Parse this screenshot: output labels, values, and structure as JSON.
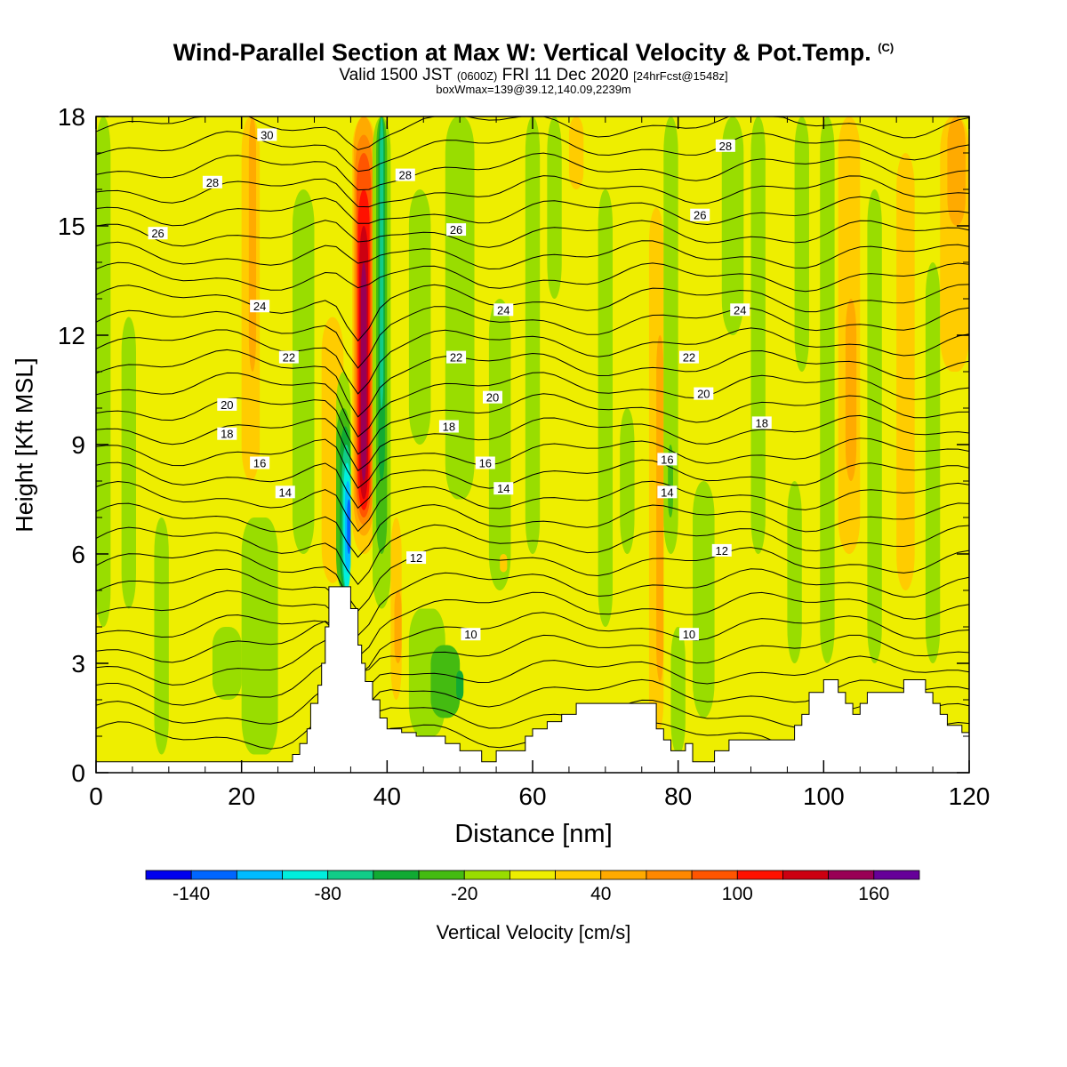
{
  "header": {
    "title": "Wind-Parallel Section at Max W: Vertical Velocity & Pot.Temp.",
    "title_mark": "(C)",
    "valid_a": "Valid 1500 JST",
    "valid_zone": "(0600Z)",
    "valid_b": "FRI 11 Dec 2020",
    "valid_fcst": "[24hrFcst@1548z]",
    "box_info": "boxWmax=139@39.12,140.09,2239m"
  },
  "chart_data": {
    "type": "heatmap",
    "title": "Wind-Parallel Section at Max W: Vertical Velocity & Pot.Temp.",
    "xlabel": "Distance [nm]",
    "ylabel": "Height [Kft MSL]",
    "xlim": [
      0,
      120
    ],
    "ylim": [
      0,
      18
    ],
    "x_ticks": [
      0,
      20,
      40,
      60,
      80,
      100,
      120
    ],
    "y_ticks": [
      0,
      3,
      6,
      9,
      12,
      15,
      18
    ],
    "field": "Vertical Velocity",
    "colorbar": {
      "label": "Vertical Velocity [cm/s]",
      "levels": [
        -160,
        -140,
        -120,
        -100,
        -80,
        -60,
        -40,
        -20,
        0,
        20,
        40,
        60,
        80,
        100,
        120,
        140,
        160,
        180
      ],
      "tick_labels": [
        -140,
        -80,
        -20,
        40,
        100,
        160
      ],
      "colors": [
        "#0000ee",
        "#0066ff",
        "#00bbff",
        "#00eedd",
        "#11cc88",
        "#11aa33",
        "#44bb11",
        "#99dd00",
        "#eeee00",
        "#ffcc00",
        "#ffaa00",
        "#ff8800",
        "#ff5500",
        "#ff1100",
        "#cc0011",
        "#990055",
        "#660099"
      ]
    },
    "background_class": "0 to 20",
    "bands": [
      {
        "x0": 0,
        "x1": 2,
        "zb": 4,
        "zt": 18,
        "class": "-20 to 0"
      },
      {
        "x0": 3.5,
        "x1": 5.5,
        "zb": 4.5,
        "zt": 12.5,
        "class": "-20 to 0"
      },
      {
        "x0": 8,
        "x1": 10,
        "zb": 0.5,
        "zt": 7,
        "class": "-20 to 0"
      },
      {
        "x0": 16,
        "x1": 20,
        "zb": 2,
        "zt": 4,
        "class": "-20 to 0"
      },
      {
        "x0": 20,
        "x1": 25,
        "zb": 0.5,
        "zt": 7,
        "class": "-20 to 0"
      },
      {
        "x0": 20,
        "x1": 22.5,
        "zb": 8,
        "zt": 18,
        "class": "20 to 40"
      },
      {
        "x0": 21,
        "x1": 22,
        "zb": 11,
        "zt": 18,
        "class": "40 to 60"
      },
      {
        "x0": 27,
        "x1": 30,
        "zb": 6,
        "zt": 16,
        "class": "-20 to 0"
      },
      {
        "x0": 31,
        "x1": 34,
        "zb": 5.2,
        "zt": 12.5,
        "class": "20 to 40"
      },
      {
        "x0": 33,
        "x1": 35,
        "zb": 5,
        "zt": 11,
        "class": "-20 to 0"
      },
      {
        "x0": 33,
        "x1": 35,
        "zb": 5,
        "zt": 10,
        "class": "-40 to -20"
      },
      {
        "x0": 33.5,
        "x1": 35,
        "zb": 5,
        "zt": 9.5,
        "class": "-60 to -40"
      },
      {
        "x0": 33.8,
        "x1": 35,
        "zb": 5,
        "zt": 9,
        "class": "-80 to -60"
      },
      {
        "x0": 34,
        "x1": 35,
        "zb": 5,
        "zt": 8.5,
        "class": "-100 to -80"
      },
      {
        "x0": 34.2,
        "x1": 35,
        "zb": 5.5,
        "zt": 8,
        "class": "-120 to -100"
      },
      {
        "x0": 34.5,
        "x1": 35,
        "zb": 6,
        "zt": 7.5,
        "class": "-140 to -120"
      },
      {
        "x0": 35.2,
        "x1": 38.5,
        "zb": 6,
        "zt": 18,
        "class": "20 to 40"
      },
      {
        "x0": 35.4,
        "x1": 38.2,
        "zb": 6.5,
        "zt": 18,
        "class": "40 to 60"
      },
      {
        "x0": 35.6,
        "x1": 38,
        "zb": 6.8,
        "zt": 17.5,
        "class": "60 to 80"
      },
      {
        "x0": 35.8,
        "x1": 37.8,
        "zb": 7,
        "zt": 17,
        "class": "80 to 100"
      },
      {
        "x0": 36,
        "x1": 37.6,
        "zb": 7.2,
        "zt": 16,
        "class": "100 to 120"
      },
      {
        "x0": 36.2,
        "x1": 37.4,
        "zb": 7.5,
        "zt": 15,
        "class": "120 to 140"
      },
      {
        "x0": 36.4,
        "x1": 37.2,
        "zb": 8,
        "zt": 14,
        "class": "140 to 160"
      },
      {
        "x0": 38,
        "x1": 40.5,
        "zb": 4.5,
        "zt": 18,
        "class": "-20 to 0"
      },
      {
        "x0": 38.5,
        "x1": 40,
        "zb": 6,
        "zt": 18,
        "class": "-40 to -20"
      },
      {
        "x0": 38.8,
        "x1": 39.7,
        "zb": 8,
        "zt": 18,
        "class": "-60 to -40"
      },
      {
        "x0": 39,
        "x1": 39.5,
        "zb": 10,
        "zt": 18,
        "class": "-80 to -60"
      },
      {
        "x0": 40.5,
        "x1": 42,
        "zb": 2,
        "zt": 7,
        "class": "20 to 40"
      },
      {
        "x0": 41,
        "x1": 42,
        "zb": 3,
        "zt": 5,
        "class": "40 to 60"
      },
      {
        "x0": 43,
        "x1": 48,
        "zb": 1,
        "zt": 4.5,
        "class": "-20 to 0"
      },
      {
        "x0": 46,
        "x1": 50,
        "zb": 1.5,
        "zt": 3.5,
        "class": "-40 to -20"
      },
      {
        "x0": 49.5,
        "x1": 50.5,
        "zb": 2,
        "zt": 2.8,
        "class": "-60 to -40"
      },
      {
        "x0": 43,
        "x1": 46,
        "zb": 9,
        "zt": 16,
        "class": "-20 to 0"
      },
      {
        "x0": 48,
        "x1": 52,
        "zb": 7.5,
        "zt": 18,
        "class": "-20 to 0"
      },
      {
        "x0": 54,
        "x1": 57,
        "zb": 5,
        "zt": 13,
        "class": "-20 to 0"
      },
      {
        "x0": 55.5,
        "x1": 56.5,
        "zb": 5.5,
        "zt": 6,
        "class": "20 to 40"
      },
      {
        "x0": 59,
        "x1": 61,
        "zb": 6,
        "zt": 18,
        "class": "-20 to 0"
      },
      {
        "x0": 62,
        "x1": 64,
        "zb": 13,
        "zt": 18,
        "class": "-20 to 0"
      },
      {
        "x0": 65,
        "x1": 67,
        "zb": 16,
        "zt": 18,
        "class": "20 to 40"
      },
      {
        "x0": 69,
        "x1": 71,
        "zb": 4,
        "zt": 16,
        "class": "-20 to 0"
      },
      {
        "x0": 72,
        "x1": 74,
        "zb": 6,
        "zt": 10,
        "class": "-20 to 0"
      },
      {
        "x0": 76,
        "x1": 78,
        "zb": 1,
        "zt": 15.5,
        "class": "20 to 40"
      },
      {
        "x0": 77,
        "x1": 78,
        "zb": 2.5,
        "zt": 12,
        "class": "40 to 60"
      },
      {
        "x0": 78,
        "x1": 80,
        "zb": 6,
        "zt": 18,
        "class": "-20 to 0"
      },
      {
        "x0": 78.6,
        "x1": 79.3,
        "zb": 7,
        "zt": 9,
        "class": "-40 to -20"
      },
      {
        "x0": 79,
        "x1": 81,
        "zb": 0.5,
        "zt": 4,
        "class": "-20 to 0"
      },
      {
        "x0": 82,
        "x1": 85,
        "zb": 1.5,
        "zt": 8,
        "class": "-20 to 0"
      },
      {
        "x0": 86,
        "x1": 89,
        "zb": 12,
        "zt": 18,
        "class": "-20 to 0"
      },
      {
        "x0": 90,
        "x1": 92,
        "zb": 6,
        "zt": 18,
        "class": "-20 to 0"
      },
      {
        "x0": 95,
        "x1": 97,
        "zb": 3,
        "zt": 8,
        "class": "-20 to 0"
      },
      {
        "x0": 96,
        "x1": 98,
        "zb": 11,
        "zt": 18,
        "class": "-20 to 0"
      },
      {
        "x0": 99.5,
        "x1": 101.5,
        "zb": 3,
        "zt": 18,
        "class": "-20 to 0"
      },
      {
        "x0": 102,
        "x1": 105,
        "zb": 6,
        "zt": 18,
        "class": "20 to 40"
      },
      {
        "x0": 103,
        "x1": 104.5,
        "zb": 8,
        "zt": 13,
        "class": "40 to 60"
      },
      {
        "x0": 106,
        "x1": 108,
        "zb": 3,
        "zt": 16,
        "class": "-20 to 0"
      },
      {
        "x0": 110,
        "x1": 112.5,
        "zb": 5,
        "zt": 17,
        "class": "20 to 40"
      },
      {
        "x0": 114,
        "x1": 116,
        "zb": 3,
        "zt": 14,
        "class": "-20 to 0"
      },
      {
        "x0": 116,
        "x1": 120,
        "zb": 11,
        "zt": 18,
        "class": "20 to 40"
      },
      {
        "x0": 117,
        "x1": 119.5,
        "zb": 15,
        "zt": 18,
        "class": "40 to 60"
      }
    ],
    "terrain": [
      [
        0,
        0.3
      ],
      [
        27,
        0.3
      ],
      [
        27,
        0.5
      ],
      [
        28,
        0.5
      ],
      [
        28,
        0.8
      ],
      [
        29,
        0.8
      ],
      [
        29,
        1.2
      ],
      [
        29.5,
        1.2
      ],
      [
        29.5,
        1.9
      ],
      [
        30.5,
        1.9
      ],
      [
        30.5,
        2.4
      ],
      [
        31,
        2.4
      ],
      [
        31,
        3.0
      ],
      [
        31.5,
        3.0
      ],
      [
        31.5,
        4.0
      ],
      [
        32,
        4.0
      ],
      [
        32,
        5.1
      ],
      [
        35,
        5.1
      ],
      [
        35,
        4.5
      ],
      [
        36,
        4.5
      ],
      [
        36,
        3.5
      ],
      [
        36.5,
        3.5
      ],
      [
        36.5,
        3.0
      ],
      [
        37,
        3.0
      ],
      [
        37,
        2.5
      ],
      [
        38,
        2.5
      ],
      [
        38,
        2.0
      ],
      [
        39,
        2.0
      ],
      [
        39,
        1.5
      ],
      [
        40,
        1.5
      ],
      [
        40,
        1.2
      ],
      [
        42,
        1.2
      ],
      [
        42,
        1.1
      ],
      [
        44,
        1.1
      ],
      [
        44,
        1.0
      ],
      [
        48,
        1.0
      ],
      [
        48,
        0.8
      ],
      [
        50,
        0.8
      ],
      [
        50,
        0.6
      ],
      [
        53,
        0.6
      ],
      [
        53,
        0.3
      ],
      [
        55,
        0.3
      ],
      [
        55,
        0.6
      ],
      [
        59,
        0.6
      ],
      [
        59,
        1.0
      ],
      [
        60,
        1.0
      ],
      [
        60,
        1.2
      ],
      [
        62,
        1.2
      ],
      [
        62,
        1.4
      ],
      [
        64,
        1.4
      ],
      [
        64,
        1.6
      ],
      [
        66,
        1.6
      ],
      [
        66,
        1.9
      ],
      [
        77,
        1.9
      ],
      [
        77,
        1.2
      ],
      [
        78,
        1.2
      ],
      [
        78,
        0.9
      ],
      [
        79,
        0.9
      ],
      [
        79,
        0.6
      ],
      [
        81,
        0.6
      ],
      [
        81,
        0.8
      ],
      [
        82,
        0.8
      ],
      [
        82,
        0.3
      ],
      [
        85,
        0.3
      ],
      [
        85,
        0.6
      ],
      [
        87,
        0.6
      ],
      [
        87,
        0.9
      ],
      [
        96,
        0.9
      ],
      [
        96,
        1.3
      ],
      [
        97,
        1.3
      ],
      [
        97,
        1.6
      ],
      [
        98,
        1.6
      ],
      [
        98,
        2.2
      ],
      [
        100,
        2.2
      ],
      [
        100,
        2.55
      ],
      [
        102,
        2.55
      ],
      [
        102,
        2.2
      ],
      [
        103,
        2.2
      ],
      [
        103,
        1.9
      ],
      [
        104,
        1.9
      ],
      [
        104,
        1.6
      ],
      [
        105,
        1.6
      ],
      [
        105,
        1.9
      ],
      [
        106,
        1.9
      ],
      [
        106,
        2.2
      ],
      [
        111,
        2.2
      ],
      [
        111,
        2.55
      ],
      [
        114,
        2.55
      ],
      [
        114,
        2.2
      ],
      [
        115,
        2.2
      ],
      [
        115,
        1.9
      ],
      [
        116,
        1.9
      ],
      [
        116,
        1.6
      ],
      [
        117,
        1.6
      ],
      [
        117,
        1.3
      ],
      [
        119,
        1.3
      ],
      [
        119,
        1.1
      ],
      [
        120,
        1.1
      ]
    ],
    "theta_contour_labels": [
      {
        "text": "30",
        "x": 23.5,
        "z": 17.5
      },
      {
        "text": "28",
        "x": 16,
        "z": 16.2
      },
      {
        "text": "28",
        "x": 42.5,
        "z": 16.4
      },
      {
        "text": "28",
        "x": 86.5,
        "z": 17.2
      },
      {
        "text": "26",
        "x": 8.5,
        "z": 14.8
      },
      {
        "text": "26",
        "x": 49.5,
        "z": 14.9
      },
      {
        "text": "26",
        "x": 83,
        "z": 15.3
      },
      {
        "text": "24",
        "x": 22.5,
        "z": 12.8
      },
      {
        "text": "24",
        "x": 56,
        "z": 12.7
      },
      {
        "text": "24",
        "x": 88.5,
        "z": 12.7
      },
      {
        "text": "22",
        "x": 26.5,
        "z": 11.4
      },
      {
        "text": "22",
        "x": 49.5,
        "z": 11.4
      },
      {
        "text": "22",
        "x": 81.5,
        "z": 11.4
      },
      {
        "text": "20",
        "x": 18,
        "z": 10.1
      },
      {
        "text": "20",
        "x": 54.5,
        "z": 10.3
      },
      {
        "text": "20",
        "x": 83.5,
        "z": 10.4
      },
      {
        "text": "18",
        "x": 18,
        "z": 9.3
      },
      {
        "text": "18",
        "x": 48.5,
        "z": 9.5
      },
      {
        "text": "18",
        "x": 91.5,
        "z": 9.6
      },
      {
        "text": "16",
        "x": 22.5,
        "z": 8.5
      },
      {
        "text": "16",
        "x": 53.5,
        "z": 8.5
      },
      {
        "text": "16",
        "x": 78.5,
        "z": 8.6
      },
      {
        "text": "14",
        "x": 26,
        "z": 7.7
      },
      {
        "text": "14",
        "x": 56,
        "z": 7.8
      },
      {
        "text": "14",
        "x": 78.5,
        "z": 7.7
      },
      {
        "text": "12",
        "x": 44,
        "z": 5.9
      },
      {
        "text": "12",
        "x": 86,
        "z": 6.1
      },
      {
        "text": "10",
        "x": 51.5,
        "z": 3.8
      },
      {
        "text": "10",
        "x": 81.5,
        "z": 3.8
      }
    ]
  }
}
